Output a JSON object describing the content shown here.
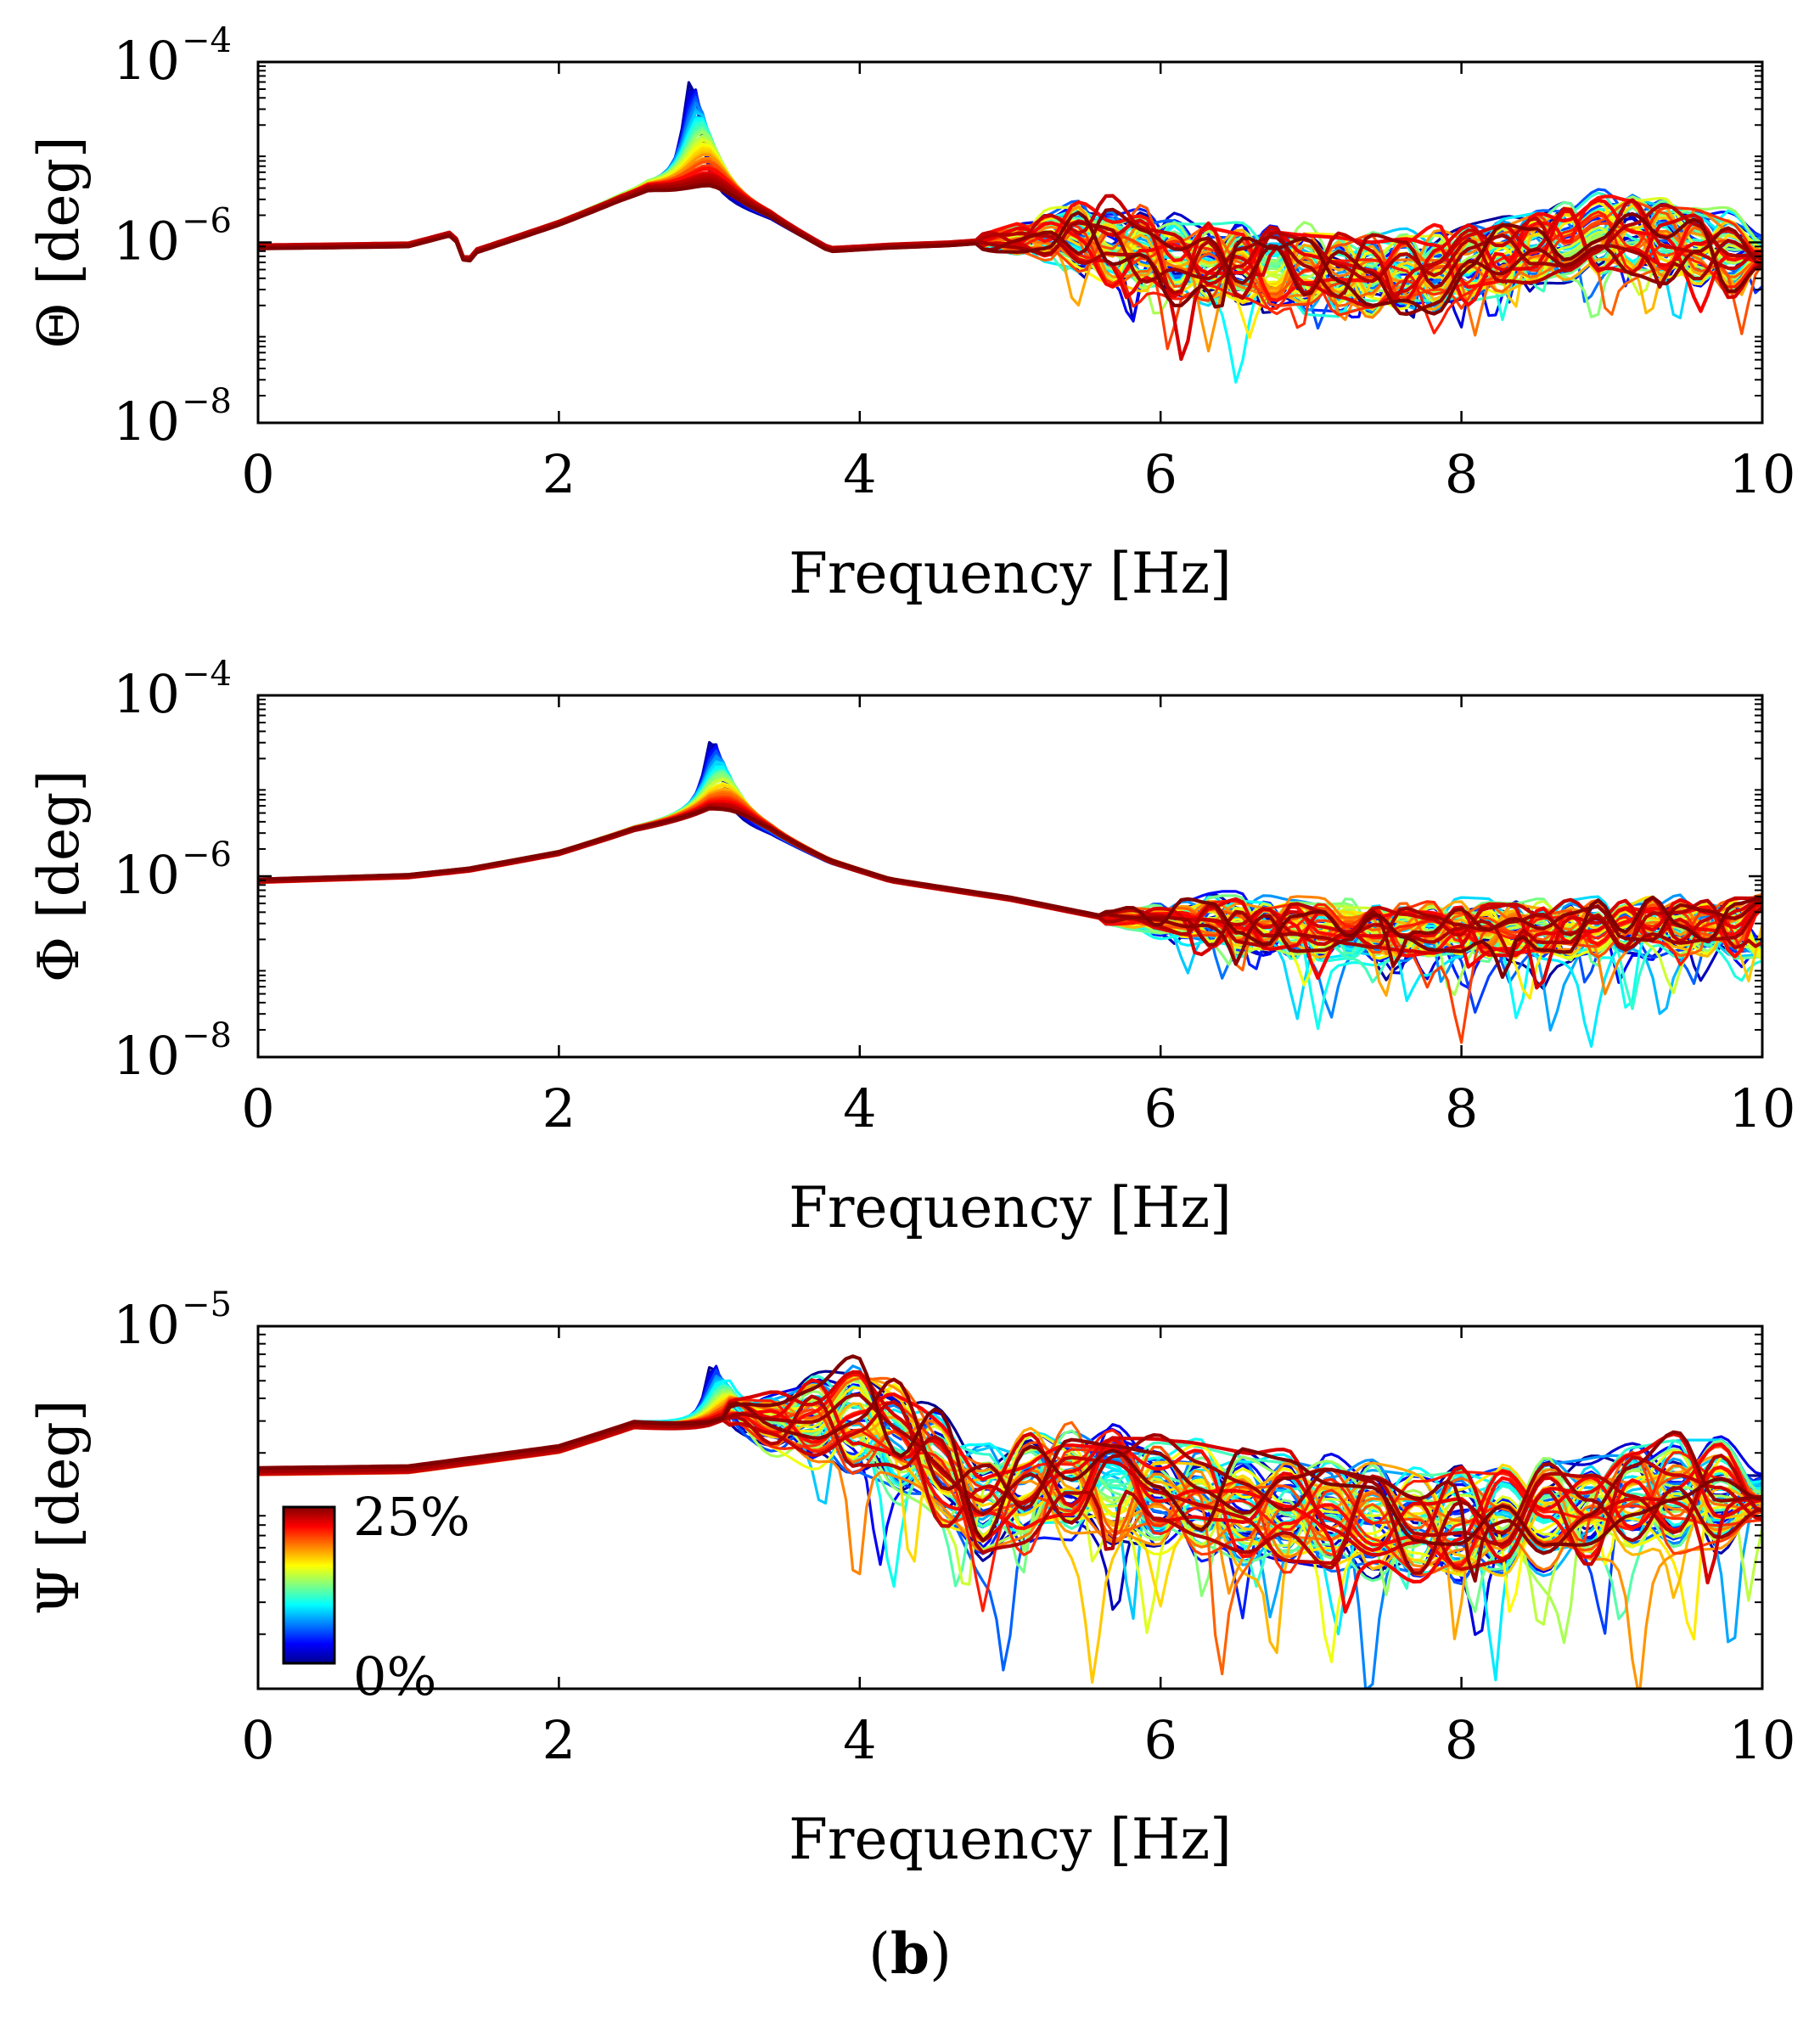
{
  "figure": {
    "caption_open": "(",
    "caption_letter": "b",
    "caption_close": ")"
  },
  "colorbar": {
    "max_label": "25%",
    "min_label": "0%",
    "colors": [
      "#00008f",
      "#0000ff",
      "#0080ff",
      "#00ffff",
      "#80ff80",
      "#ffff00",
      "#ff8000",
      "#ff0000",
      "#800000"
    ]
  },
  "chart_data": [
    {
      "type": "line",
      "id": "theta",
      "ylabel": "Θ [deg]",
      "xlabel": "Frequency [Hz]",
      "xlim": [
        0,
        10
      ],
      "xticks": [
        "0",
        "2",
        "4",
        "6",
        "8",
        "10"
      ],
      "yscale": "log",
      "ylim_log10": [
        -8,
        -4
      ],
      "yticks": [
        {
          "base": "10",
          "exp": "−4",
          "v": -4
        },
        {
          "base": "10",
          "exp": "−6",
          "v": -6
        },
        {
          "base": "10",
          "exp": "−8",
          "v": -8
        }
      ],
      "series_count": 60,
      "damage_range_percent": [
        0,
        25
      ],
      "anchors": [
        [
          0,
          -6.05
        ],
        [
          1.0,
          -6.03
        ],
        [
          1.3,
          -5.9
        ],
        [
          1.38,
          -6.25
        ],
        [
          1.45,
          -6.1
        ],
        [
          2.0,
          -5.8
        ],
        [
          2.4,
          -5.55
        ],
        [
          2.6,
          -5.45
        ],
        [
          2.8,
          -5.5
        ],
        [
          3.0,
          -5.55
        ],
        [
          3.4,
          -5.75
        ],
        [
          3.8,
          -6.1
        ],
        [
          4.2,
          -6.05
        ],
        [
          4.6,
          -6.02
        ],
        [
          5.0,
          -5.97
        ],
        [
          5.4,
          -5.88
        ],
        [
          5.8,
          -6.05
        ],
        [
          6.2,
          -6.2
        ],
        [
          6.6,
          -6.25
        ],
        [
          7.0,
          -6.3
        ],
        [
          7.4,
          -6.35
        ],
        [
          7.8,
          -6.3
        ],
        [
          8.2,
          -6.15
        ],
        [
          8.6,
          -6.0
        ],
        [
          9.0,
          -5.9
        ],
        [
          9.4,
          -5.95
        ],
        [
          10.0,
          -6.2
        ]
      ],
      "peaks": [
        {
          "x": 2.88,
          "height": 1.35,
          "width": 0.07
        }
      ],
      "noise_start": 4.8,
      "noise_amp": 0.45
    },
    {
      "type": "line",
      "id": "phi",
      "ylabel": "Φ [deg]",
      "xlabel": "Frequency [Hz]",
      "xlim": [
        0,
        10
      ],
      "xticks": [
        "0",
        "2",
        "4",
        "6",
        "8",
        "10"
      ],
      "yscale": "log",
      "ylim_log10": [
        -8,
        -4
      ],
      "yticks": [
        {
          "base": "10",
          "exp": "−4",
          "v": -4
        },
        {
          "base": "10",
          "exp": "−6",
          "v": -6
        },
        {
          "base": "10",
          "exp": "−8",
          "v": -8
        }
      ],
      "series_count": 60,
      "damage_range_percent": [
        0,
        25
      ],
      "anchors": [
        [
          0,
          -6.05
        ],
        [
          1.0,
          -6.0
        ],
        [
          1.4,
          -5.93
        ],
        [
          2.0,
          -5.75
        ],
        [
          2.5,
          -5.5
        ],
        [
          3.0,
          -5.35
        ],
        [
          3.4,
          -5.55
        ],
        [
          3.8,
          -5.85
        ],
        [
          4.2,
          -6.05
        ],
        [
          5.0,
          -6.25
        ],
        [
          5.6,
          -6.45
        ],
        [
          6.2,
          -6.5
        ],
        [
          6.8,
          -6.55
        ],
        [
          7.4,
          -6.6
        ],
        [
          8.0,
          -6.6
        ],
        [
          8.6,
          -6.6
        ],
        [
          9.2,
          -6.55
        ],
        [
          10.0,
          -6.55
        ]
      ],
      "peaks": [
        {
          "x": 3.02,
          "height": 0.9,
          "width": 0.07
        }
      ],
      "noise_start": 5.6,
      "noise_amp": 0.3
    },
    {
      "type": "line",
      "id": "psi",
      "ylabel": "Ψ [deg]",
      "xlabel": "Frequency [Hz]",
      "xlim": [
        0,
        10
      ],
      "xticks": [
        "0",
        "2",
        "4",
        "6",
        "8",
        "10"
      ],
      "yscale": "log",
      "ylim_log10": [
        -7,
        -5
      ],
      "yticks": [
        {
          "base": "10",
          "exp": "−5",
          "v": -5
        }
      ],
      "series_count": 60,
      "damage_range_percent": [
        0,
        25
      ],
      "anchors": [
        [
          0,
          -5.8
        ],
        [
          1.0,
          -5.79
        ],
        [
          2.0,
          -5.68
        ],
        [
          2.5,
          -5.55
        ],
        [
          3.0,
          -5.58
        ],
        [
          3.5,
          -5.55
        ],
        [
          4.0,
          -5.5
        ],
        [
          4.4,
          -5.7
        ],
        [
          4.8,
          -6.0
        ],
        [
          5.2,
          -5.85
        ],
        [
          6.0,
          -5.9
        ],
        [
          6.6,
          -6.0
        ],
        [
          7.2,
          -6.05
        ],
        [
          7.8,
          -6.1
        ],
        [
          8.4,
          -6.05
        ],
        [
          9.0,
          -5.95
        ],
        [
          10.0,
          -5.9
        ]
      ],
      "peaks": [
        {
          "x": 3.02,
          "height": 0.38,
          "width": 0.06
        }
      ],
      "noise_start": 3.1,
      "noise_amp": 0.3
    }
  ]
}
